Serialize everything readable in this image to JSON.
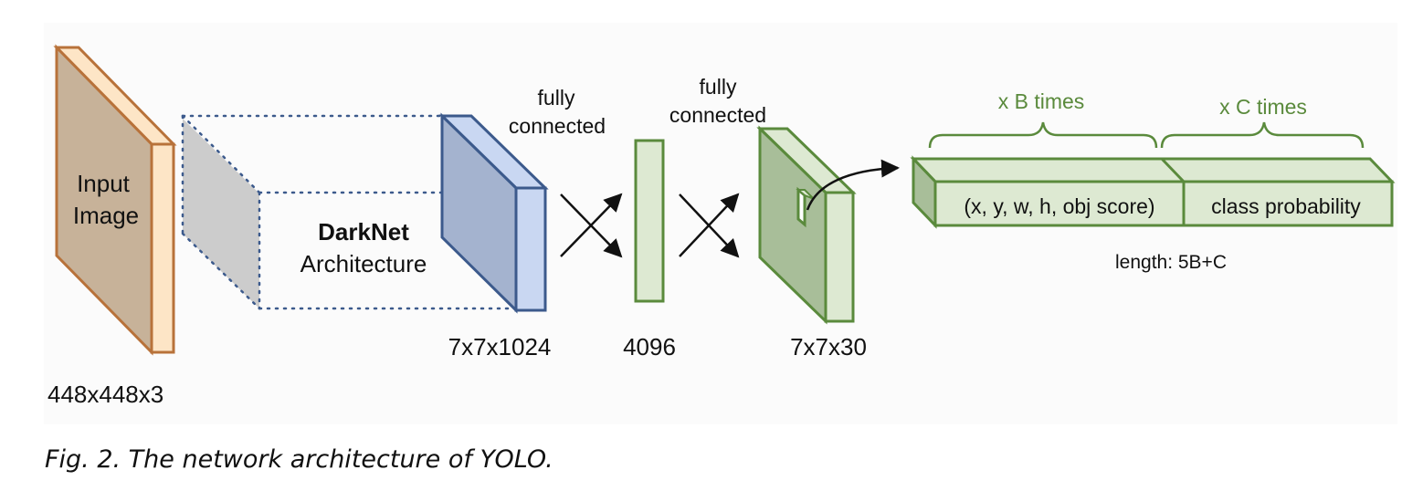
{
  "input": {
    "title_line1": "Input",
    "title_line2": "Image",
    "dims": "448x448x3"
  },
  "darknet": {
    "name": "DarkNet",
    "subtitle": "Architecture"
  },
  "conv_output": {
    "dims": "7x7x1024"
  },
  "fc1": {
    "label_line1": "fully",
    "label_line2": "connected",
    "dims": "4096"
  },
  "fc2": {
    "label_line1": "fully",
    "label_line2": "connected",
    "dims": "7x7x30"
  },
  "output_vector": {
    "bbox_repeat": "x B times",
    "class_repeat": "x C times",
    "bbox_fields": "(x, y, w, h, obj score)",
    "class_fields": "class probability",
    "length": "length: 5B+C"
  },
  "caption": "Fig. 2. The network architecture of YOLO.",
  "colors": {
    "input_front": "#c7b299",
    "input_side": "#fde5c6",
    "input_stroke": "#b8723a",
    "darknet_fill": "#cccccc",
    "dotted": "#3c5a8c",
    "conv_front": "#a4b3cf",
    "conv_side": "#c9d7f2",
    "conv_stroke": "#3c5a8c",
    "green_fill": "#dde9d2",
    "green_dark": "#a8be99",
    "green_stroke": "#5a8a3c",
    "text_green": "#5a8a3c"
  }
}
